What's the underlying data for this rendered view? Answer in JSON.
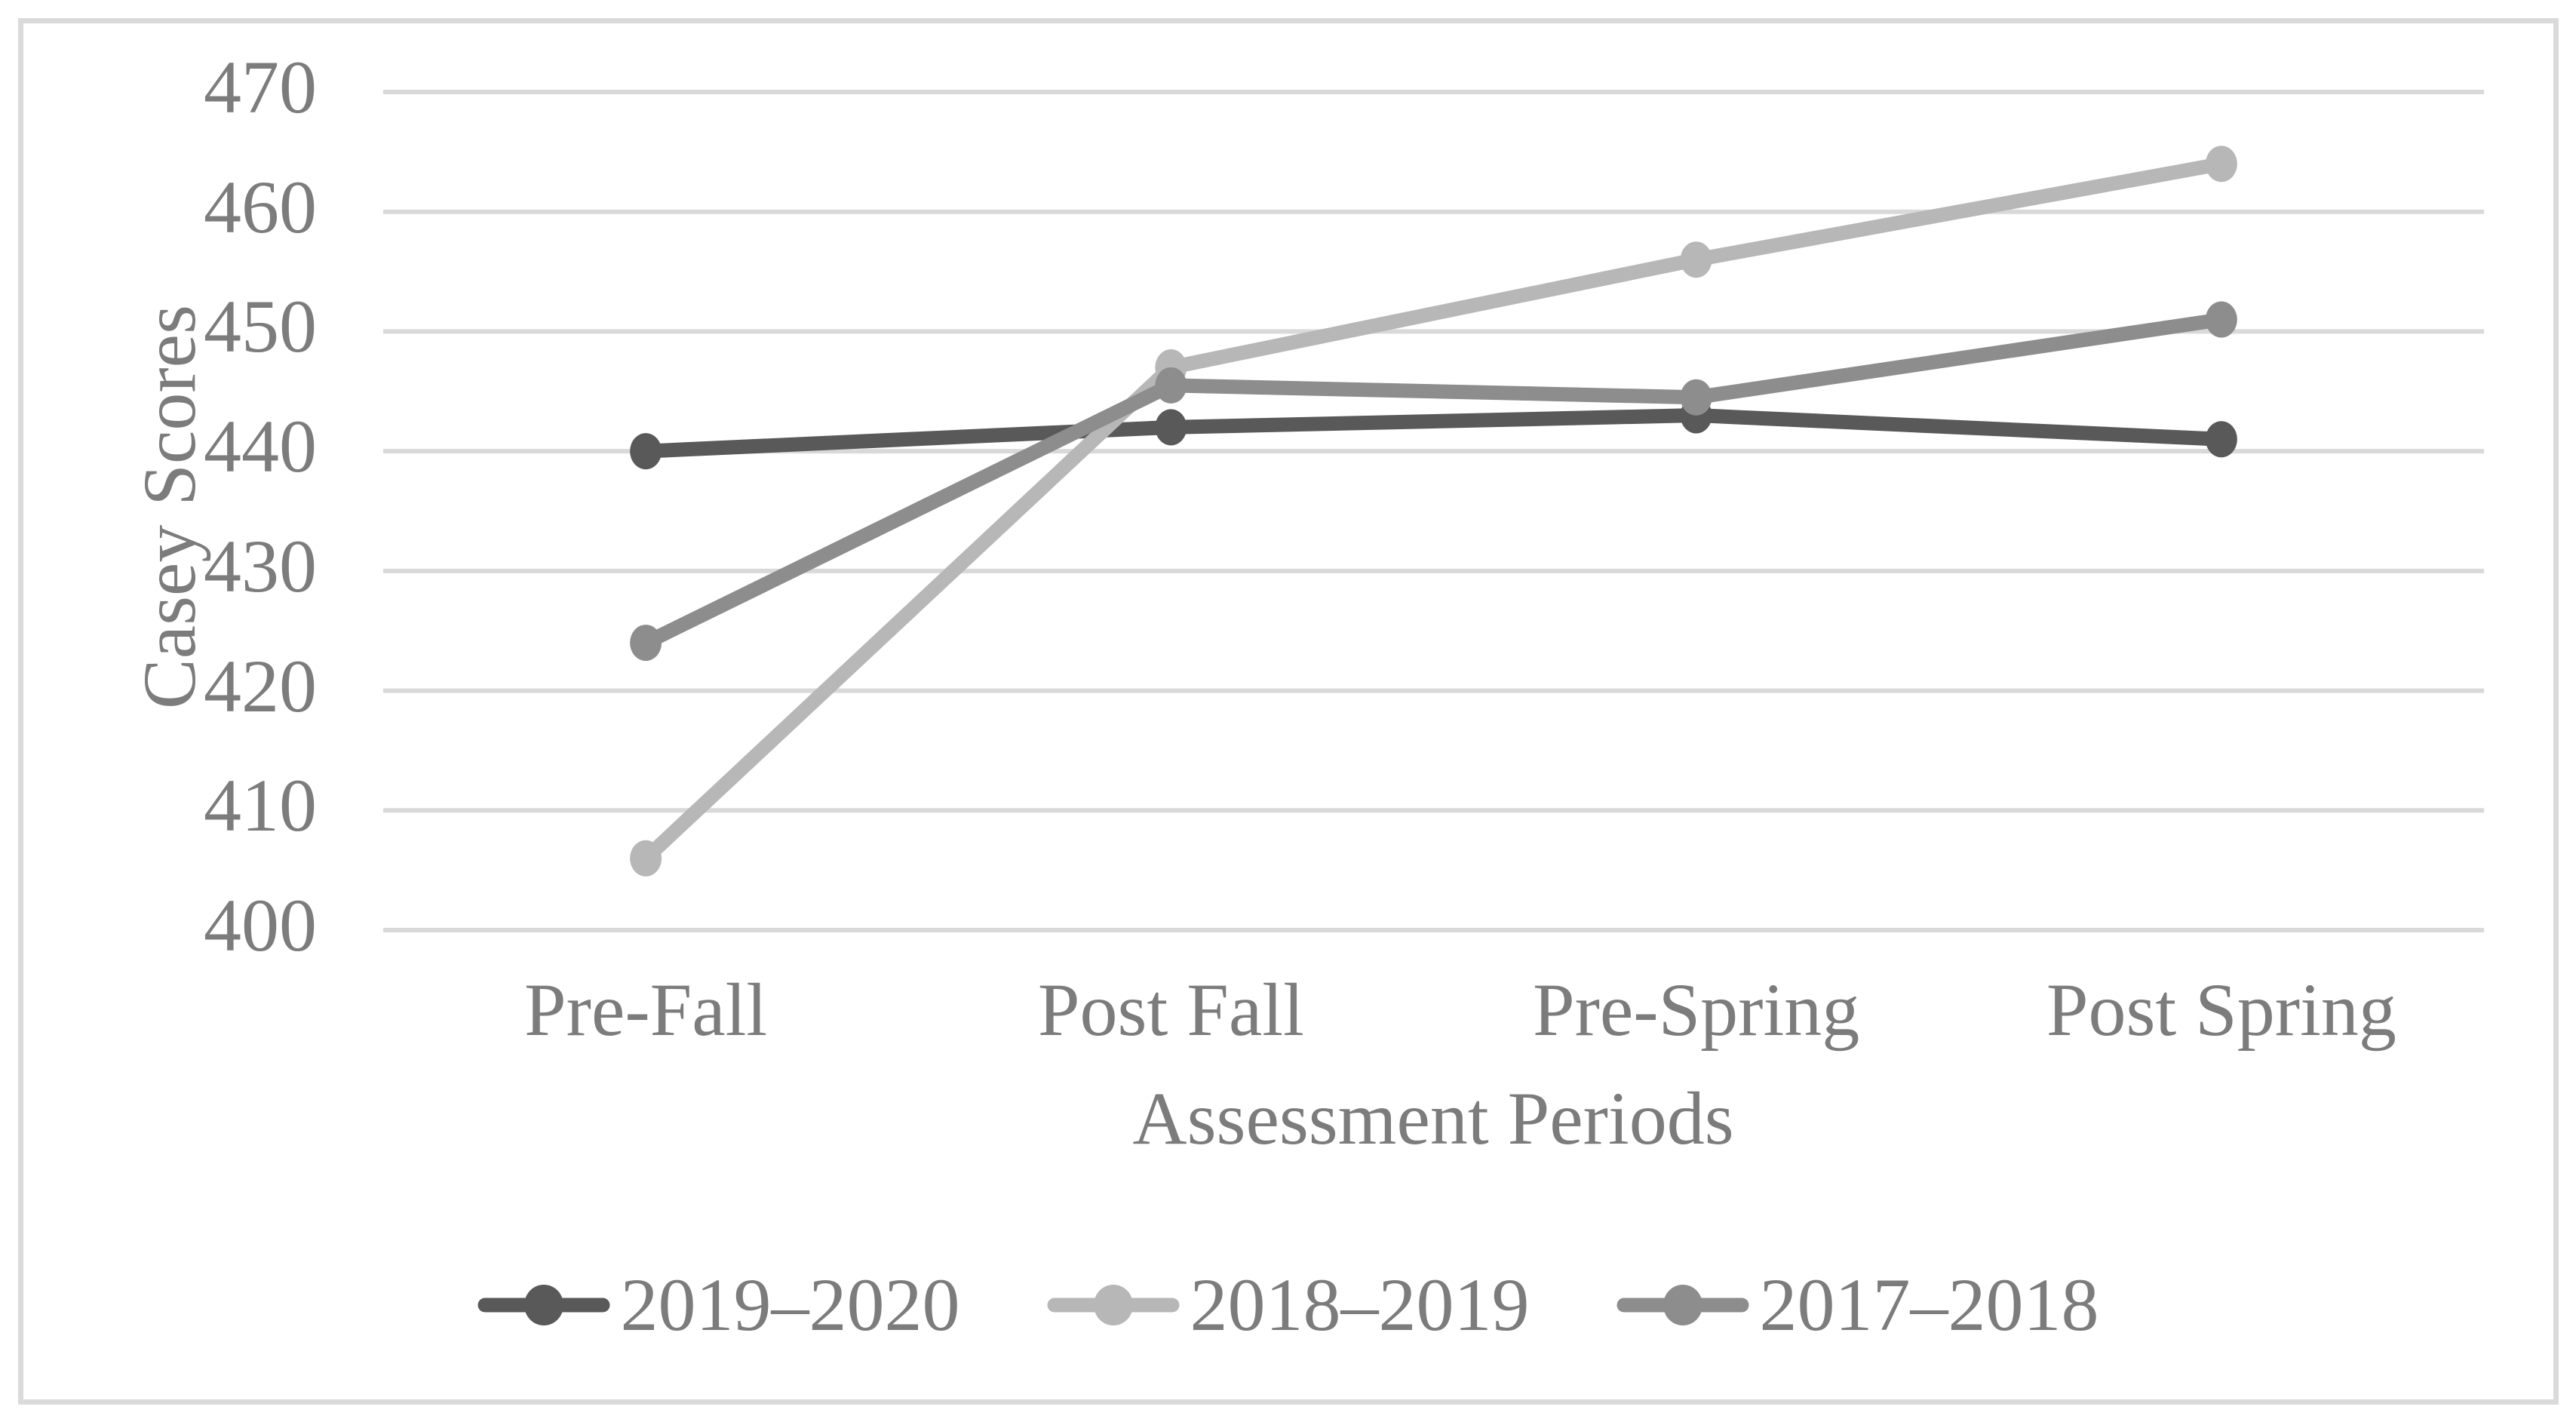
{
  "chart_data": {
    "type": "line",
    "title": "",
    "categories": [
      "Pre-Fall",
      "Post Fall",
      "Pre-Spring",
      "Post Spring"
    ],
    "series": [
      {
        "name": "2019–2020",
        "color": "#595959",
        "values": [
          440,
          442,
          443,
          441
        ]
      },
      {
        "name": "2018–2019",
        "color": "#b7b7b7",
        "values": [
          406,
          447,
          456,
          464
        ]
      },
      {
        "name": "2017–2018",
        "color": "#8d8d8d",
        "values": [
          424,
          445.5,
          444.5,
          451
        ]
      }
    ],
    "xlabel": "Assessment Periods",
    "ylabel": "Casey Scores",
    "ylim": [
      400,
      470
    ],
    "ytick_step": 10,
    "yticks": [
      "400",
      "410",
      "420",
      "430",
      "440",
      "450",
      "460",
      "470"
    ],
    "grid": "horizontal-only",
    "gridline_color": "#d9d9d9",
    "legend_position": "bottom",
    "text_color": "#7c7c7c",
    "frame_border_color": "#dadada",
    "background_color": "#ffffff",
    "marker_shape": "circle"
  }
}
